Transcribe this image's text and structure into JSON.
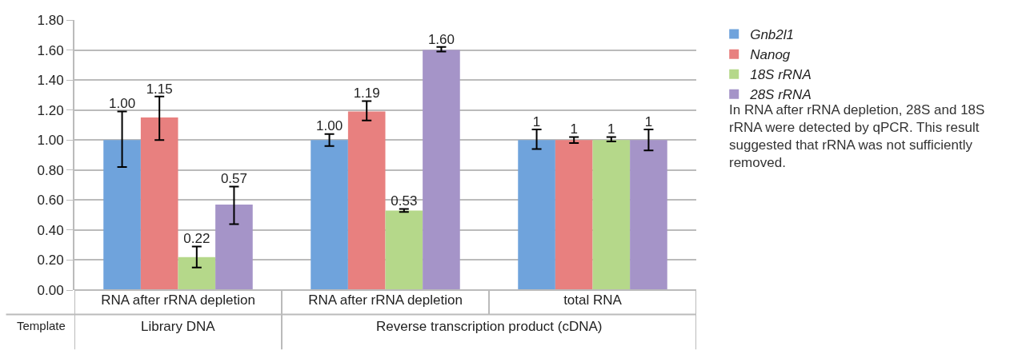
{
  "chart_data": {
    "type": "bar",
    "categories": [
      "RNA after rRNA depletion",
      "RNA after rRNA depletion",
      "total RNA"
    ],
    "series": [
      {
        "name": "Gnb2l1",
        "color": "#6fa3dc",
        "values": [
          1.0,
          1.0,
          1.0
        ],
        "errors": [
          [
            0.82,
            1.19
          ],
          [
            0.96,
            1.04
          ],
          [
            0.94,
            1.07
          ]
        ],
        "value_labels": [
          "1.00",
          "1.00",
          "1"
        ]
      },
      {
        "name": "Nanog",
        "color": "#e8807f",
        "values": [
          1.15,
          1.19,
          1.0
        ],
        "errors": [
          [
            1.0,
            1.29
          ],
          [
            1.13,
            1.26
          ],
          [
            0.98,
            1.02
          ]
        ],
        "value_labels": [
          "1.15",
          "1.19",
          "1"
        ]
      },
      {
        "name": "18S rRNA",
        "color": "#b5d88a",
        "values": [
          0.22,
          0.53,
          1.0
        ],
        "errors": [
          [
            0.15,
            0.29
          ],
          [
            0.52,
            0.54
          ],
          [
            0.99,
            1.02
          ]
        ],
        "value_labels": [
          "0.22",
          "0.53",
          "1"
        ]
      },
      {
        "name": "28S rRNA",
        "color": "#a594c8",
        "values": [
          0.57,
          1.6,
          1.0
        ],
        "errors": [
          [
            0.44,
            0.69
          ],
          [
            1.59,
            1.62
          ],
          [
            0.93,
            1.07
          ]
        ],
        "value_labels": [
          "0.57",
          "1.60",
          "1"
        ]
      }
    ],
    "ylim": [
      0,
      1.8
    ],
    "yticks": [
      {
        "value": 0,
        "label": "0.00"
      },
      {
        "value": 0.2,
        "label": "0.20"
      },
      {
        "value": 0.4,
        "label": "0.40"
      },
      {
        "value": 0.6,
        "label": "0.60"
      },
      {
        "value": 0.8,
        "label": "0.80"
      },
      {
        "value": 1.0,
        "label": "1.00"
      },
      {
        "value": 1.2,
        "label": "1.20"
      },
      {
        "value": 1.4,
        "label": "1.40"
      },
      {
        "value": 1.6,
        "label": "1.60"
      },
      {
        "value": 1.8,
        "label": "1.80"
      }
    ],
    "grid": "y",
    "legend": "top right",
    "annotations": [
      "Template",
      "Library DNA",
      "Reverse transcription product (cDNA)",
      "In RNA after rRNA depletion, 28S and 18S rRNA were detected by qPCR. This result suggested that rRNA was not sufficiently removed."
    ]
  }
}
